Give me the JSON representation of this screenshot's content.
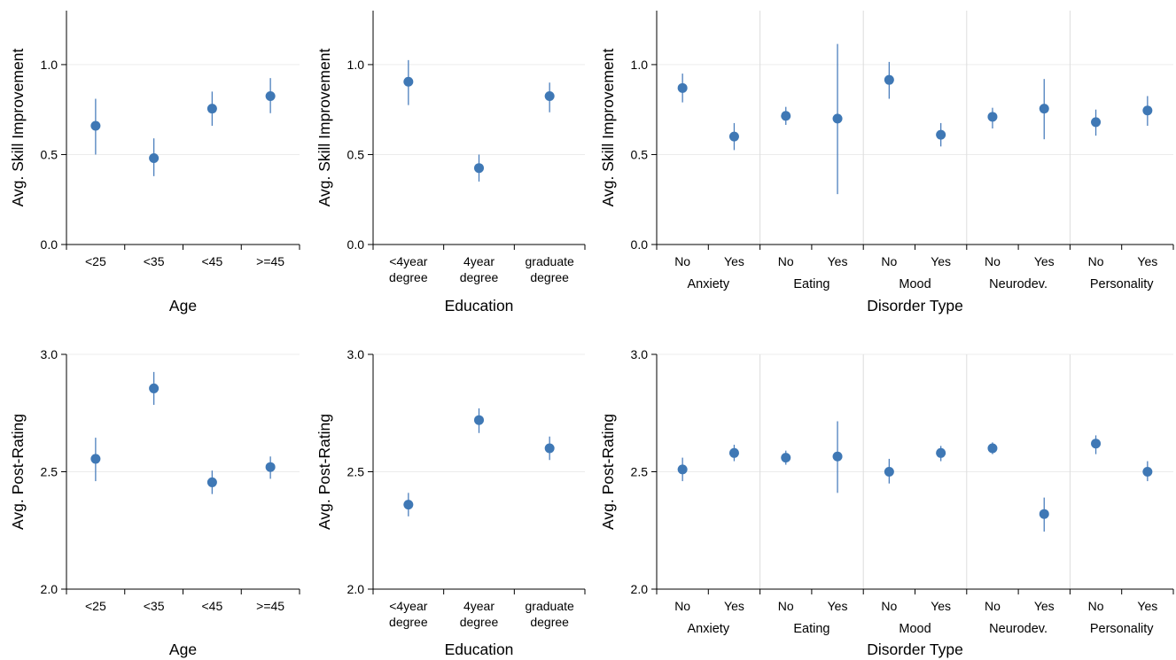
{
  "chart_data": [
    {
      "id": "age-skill",
      "type": "scatter",
      "subtype": "pointrange",
      "xlabel": "Age",
      "ylabel": "Avg. Skill Improvement",
      "ylim": [
        0,
        1.3
      ],
      "yticks": [
        "0.0",
        "0.5",
        "1.0"
      ],
      "ytick_values": [
        0,
        0.5,
        1.0
      ],
      "grid": true,
      "color": "#3f78b5",
      "categories": [
        [
          "<25"
        ],
        [
          "<35"
        ],
        [
          "<45"
        ],
        [
          ">=45"
        ]
      ],
      "values": [
        0.66,
        0.48,
        0.755,
        0.825
      ],
      "lower": [
        0.5,
        0.38,
        0.66,
        0.73
      ],
      "upper": [
        0.81,
        0.59,
        0.85,
        0.925
      ]
    },
    {
      "id": "edu-skill",
      "type": "scatter",
      "subtype": "pointrange",
      "xlabel": "Education",
      "ylabel": "Avg. Skill Improvement",
      "ylim": [
        0,
        1.3
      ],
      "yticks": [
        "0.0",
        "0.5",
        "1.0"
      ],
      "ytick_values": [
        0,
        0.5,
        1.0
      ],
      "grid": true,
      "color": "#3f78b5",
      "categories": [
        [
          "<4year",
          "degree"
        ],
        [
          "4year",
          "degree"
        ],
        [
          "graduate",
          "degree"
        ]
      ],
      "values": [
        0.905,
        0.425,
        0.825
      ],
      "lower": [
        0.775,
        0.35,
        0.735
      ],
      "upper": [
        1.025,
        0.5,
        0.9
      ]
    },
    {
      "id": "disorder-skill",
      "type": "scatter",
      "subtype": "pointrange",
      "xlabel": "Disorder Type",
      "ylabel": "Avg. Skill Improvement",
      "ylim": [
        0,
        1.3
      ],
      "yticks": [
        "0.0",
        "0.5",
        "1.0"
      ],
      "ytick_values": [
        0,
        0.5,
        1.0
      ],
      "grid": true,
      "color": "#3f78b5",
      "groups": [
        "Anxiety",
        "Eating",
        "Mood",
        "Neurodev.",
        "Personality"
      ],
      "categories": [
        [
          "No"
        ],
        [
          "Yes"
        ],
        [
          "No"
        ],
        [
          "Yes"
        ],
        [
          "No"
        ],
        [
          "Yes"
        ],
        [
          "No"
        ],
        [
          "Yes"
        ],
        [
          "No"
        ],
        [
          "Yes"
        ]
      ],
      "values": [
        0.87,
        0.6,
        0.715,
        0.7,
        0.915,
        0.61,
        0.71,
        0.755,
        0.68,
        0.745
      ],
      "lower": [
        0.79,
        0.525,
        0.665,
        0.28,
        0.81,
        0.545,
        0.645,
        0.585,
        0.605,
        0.66
      ],
      "upper": [
        0.95,
        0.675,
        0.765,
        1.115,
        1.015,
        0.675,
        0.76,
        0.92,
        0.75,
        0.825
      ]
    },
    {
      "id": "age-rating",
      "type": "scatter",
      "subtype": "pointrange",
      "xlabel": "Age",
      "ylabel": "Avg. Post-Rating",
      "ylim": [
        2.0,
        3.0
      ],
      "yticks": [
        "2.0",
        "2.5",
        "3.0"
      ],
      "ytick_values": [
        2.0,
        2.5,
        3.0
      ],
      "grid": true,
      "color": "#3f78b5",
      "categories": [
        [
          "<25"
        ],
        [
          "<35"
        ],
        [
          "<45"
        ],
        [
          ">=45"
        ]
      ],
      "values": [
        2.555,
        2.855,
        2.455,
        2.52
      ],
      "lower": [
        2.46,
        2.785,
        2.405,
        2.47
      ],
      "upper": [
        2.645,
        2.925,
        2.505,
        2.565
      ]
    },
    {
      "id": "edu-rating",
      "type": "scatter",
      "subtype": "pointrange",
      "xlabel": "Education",
      "ylabel": "Avg. Post-Rating",
      "ylim": [
        2.0,
        3.0
      ],
      "yticks": [
        "2.0",
        "2.5",
        "3.0"
      ],
      "ytick_values": [
        2.0,
        2.5,
        3.0
      ],
      "grid": true,
      "color": "#3f78b5",
      "categories": [
        [
          "<4year",
          "degree"
        ],
        [
          "4year",
          "degree"
        ],
        [
          "graduate",
          "degree"
        ]
      ],
      "values": [
        2.36,
        2.72,
        2.6
      ],
      "lower": [
        2.31,
        2.665,
        2.55
      ],
      "upper": [
        2.41,
        2.77,
        2.65
      ]
    },
    {
      "id": "disorder-rating",
      "type": "scatter",
      "subtype": "pointrange",
      "xlabel": "Disorder Type",
      "ylabel": "Avg. Post-Rating",
      "ylim": [
        2.0,
        3.0
      ],
      "yticks": [
        "2.0",
        "2.5",
        "3.0"
      ],
      "ytick_values": [
        2.0,
        2.5,
        3.0
      ],
      "grid": true,
      "color": "#3f78b5",
      "groups": [
        "Anxiety",
        "Eating",
        "Mood",
        "Neurodev.",
        "Personality"
      ],
      "categories": [
        [
          "No"
        ],
        [
          "Yes"
        ],
        [
          "No"
        ],
        [
          "Yes"
        ],
        [
          "No"
        ],
        [
          "Yes"
        ],
        [
          "No"
        ],
        [
          "Yes"
        ],
        [
          "No"
        ],
        [
          "Yes"
        ]
      ],
      "values": [
        2.51,
        2.58,
        2.56,
        2.565,
        2.5,
        2.58,
        2.6,
        2.32,
        2.62,
        2.5
      ],
      "lower": [
        2.46,
        2.545,
        2.53,
        2.41,
        2.45,
        2.545,
        2.575,
        2.245,
        2.575,
        2.46
      ],
      "upper": [
        2.56,
        2.615,
        2.59,
        2.715,
        2.555,
        2.61,
        2.625,
        2.39,
        2.655,
        2.545
      ]
    }
  ]
}
